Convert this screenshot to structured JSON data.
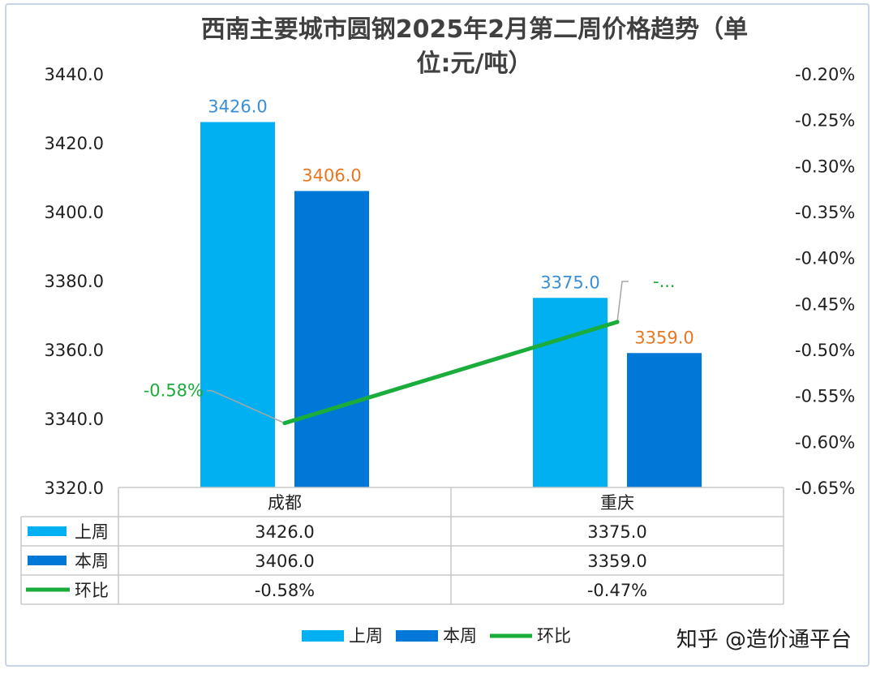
{
  "chart_data": {
    "type": "bar",
    "title_line1": "西南主要城市圆钢2025年2月第二周价格趋势（单",
    "title_line2": "位:元/吨）",
    "categories": [
      "成都",
      "重庆"
    ],
    "series": [
      {
        "name": "上周",
        "kind": "bar",
        "axis": "left",
        "color": "#00b0f0",
        "values": [
          3426.0,
          3375.0
        ],
        "labels": [
          "3426.0",
          "3375.0"
        ],
        "label_color": "#3a8fd6"
      },
      {
        "name": "本周",
        "kind": "bar",
        "axis": "left",
        "color": "#0078d7",
        "values": [
          3406.0,
          3359.0
        ],
        "labels": [
          "3406.0",
          "3359.0"
        ],
        "label_color": "#e87722"
      },
      {
        "name": "环比",
        "kind": "line",
        "axis": "right",
        "color": "#1aad3c",
        "values": [
          -0.58,
          -0.47
        ],
        "labels": [
          "-0.58%",
          "-0.47%"
        ],
        "point_labels": [
          "-0.58%",
          "-..."
        ],
        "label_color": "#1aad3c"
      }
    ],
    "left_axis": {
      "min": 3320,
      "max": 3440,
      "ticks": [
        "3320.0",
        "3340.0",
        "3360.0",
        "3380.0",
        "3400.0",
        "3420.0",
        "3440.0"
      ]
    },
    "right_axis": {
      "min": -0.65,
      "max": -0.2,
      "ticks": [
        "-0.65%",
        "-0.60%",
        "-0.55%",
        "-0.50%",
        "-0.45%",
        "-0.40%",
        "-0.35%",
        "-0.30%",
        "-0.25%",
        "-0.20%"
      ]
    },
    "grid": false,
    "legend_position": "bottom",
    "data_table": true
  },
  "watermark": "知乎 @造价通平台",
  "colors": {
    "bar_last_week": "#00b0f0",
    "bar_this_week": "#0078d7",
    "line": "#1aad3c",
    "frame": "#c9d3e3"
  }
}
